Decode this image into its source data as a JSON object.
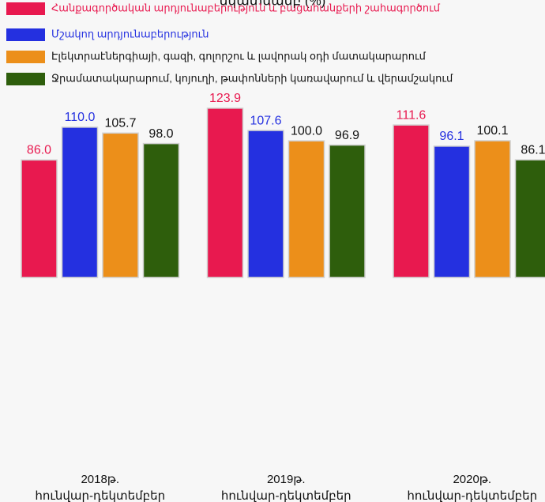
{
  "chart_data": {
    "type": "bar",
    "title": "նկատմամբ (%)",
    "categories": [
      "2018թ. հունվար-դեկտեմբեր",
      "2019թ. հունվար-դեկտեմբեր",
      "2020թ. հունվար-դեկտեմբեր"
    ],
    "series": [
      {
        "name": "Հանքագործական արդյունաբերություն և բացահանքերի շահագործում",
        "color": "#e8194f",
        "values": [
          86.0,
          123.9,
          111.6
        ],
        "value_labels": [
          "86.0",
          "123.9",
          "111.6"
        ]
      },
      {
        "name": "Մշակող արդյունաբերություն",
        "color": "#2430e0",
        "values": [
          110.0,
          107.6,
          96.1
        ],
        "value_labels": [
          "110.0",
          "107.6",
          "96.1"
        ]
      },
      {
        "name": "Էլեկտրաէներգիայի, գազի, գոլորշու և լավորակ օդի մատակարարում",
        "color": "#ec8f1a",
        "values": [
          105.7,
          100.0,
          100.1
        ],
        "value_labels": [
          "105.7",
          "100.0",
          "100.1"
        ]
      },
      {
        "name": "Ջրամատակարարում, կոյուղի, թափոնների կառավարում և վերամշակում",
        "color": "#2e5e0c",
        "values": [
          98.0,
          96.9,
          86.1
        ],
        "value_labels": [
          "98.0",
          "96.9",
          "86.1"
        ]
      }
    ],
    "ylim": [
      -150,
      125
    ],
    "legend": "top-left"
  }
}
